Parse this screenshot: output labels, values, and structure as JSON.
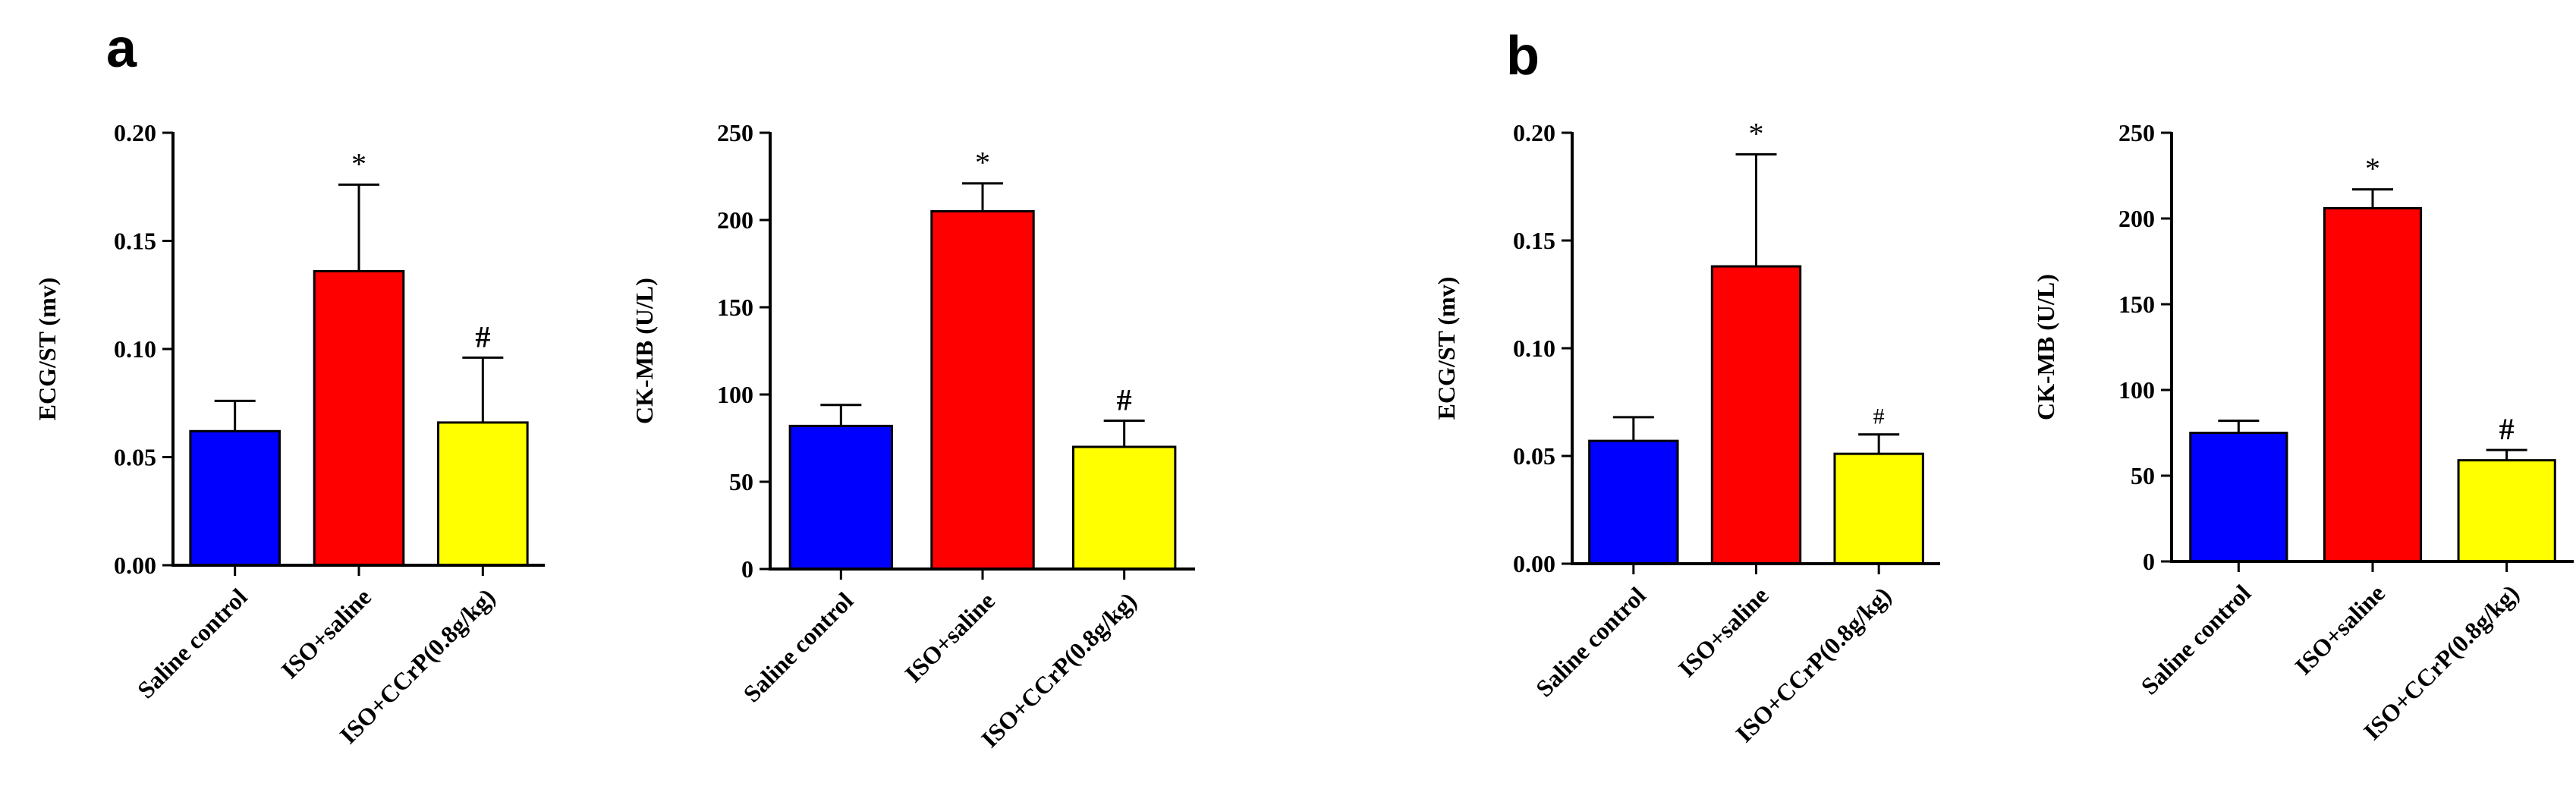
{
  "panels": [
    {
      "letter": "a"
    },
    {
      "letter": "b"
    }
  ],
  "chart_data": [
    {
      "type": "bar",
      "panel": "a",
      "title": "",
      "xlabel": "",
      "ylabel": "ECG/ST (mv)",
      "ylim": [
        0,
        0.2
      ],
      "yticks": [
        "0.00",
        "0.05",
        "0.10",
        "0.15",
        "0.20"
      ],
      "categories": [
        "Saline control",
        "ISO+saline",
        "ISO+CCrP(0.8g/kg)"
      ],
      "values": [
        0.062,
        0.136,
        0.066
      ],
      "errors": [
        0.014,
        0.04,
        0.03
      ],
      "colors": [
        "#0000ff",
        "#ff0000",
        "#ffff00"
      ],
      "annotations": [
        "",
        "*",
        "#"
      ]
    },
    {
      "type": "bar",
      "panel": "a",
      "title": "",
      "xlabel": "",
      "ylabel": "CK-MB (U/L)",
      "ylim": [
        0,
        250
      ],
      "yticks": [
        "0",
        "50",
        "100",
        "150",
        "200",
        "250"
      ],
      "categories": [
        "Saline control",
        "ISO+saline",
        "ISO+CCrP(0.8g/kg)"
      ],
      "values": [
        82,
        205,
        70
      ],
      "errors": [
        12,
        16,
        15
      ],
      "colors": [
        "#0000ff",
        "#ff0000",
        "#ffff00"
      ],
      "annotations": [
        "",
        "*",
        "#"
      ]
    },
    {
      "type": "bar",
      "panel": "b",
      "title": "",
      "xlabel": "",
      "ylabel": "ECG/ST (mv)",
      "ylim": [
        0,
        0.2
      ],
      "yticks": [
        "0.00",
        "0.05",
        "0.10",
        "0.15",
        "0.20"
      ],
      "categories": [
        "Saline control",
        "ISO+saline",
        "ISO+CCrP(0.8g/kg)"
      ],
      "values": [
        0.057,
        0.138,
        0.051
      ],
      "errors": [
        0.011,
        0.052,
        0.009
      ],
      "colors": [
        "#0000ff",
        "#ff0000",
        "#ffff00"
      ],
      "annotations": [
        "",
        "*",
        "#"
      ]
    },
    {
      "type": "bar",
      "panel": "b",
      "title": "",
      "xlabel": "",
      "ylabel": "CK-MB (U/L)",
      "ylim": [
        0,
        250
      ],
      "yticks": [
        "0",
        "50",
        "100",
        "150",
        "200",
        "250"
      ],
      "categories": [
        "Saline control",
        "ISO+saline",
        "ISO+CCrP(0.8g/kg)"
      ],
      "values": [
        75,
        206,
        59
      ],
      "errors": [
        7,
        11,
        6
      ],
      "colors": [
        "#0000ff",
        "#ff0000",
        "#ffff00"
      ],
      "annotations": [
        "",
        "*",
        "#"
      ]
    }
  ]
}
